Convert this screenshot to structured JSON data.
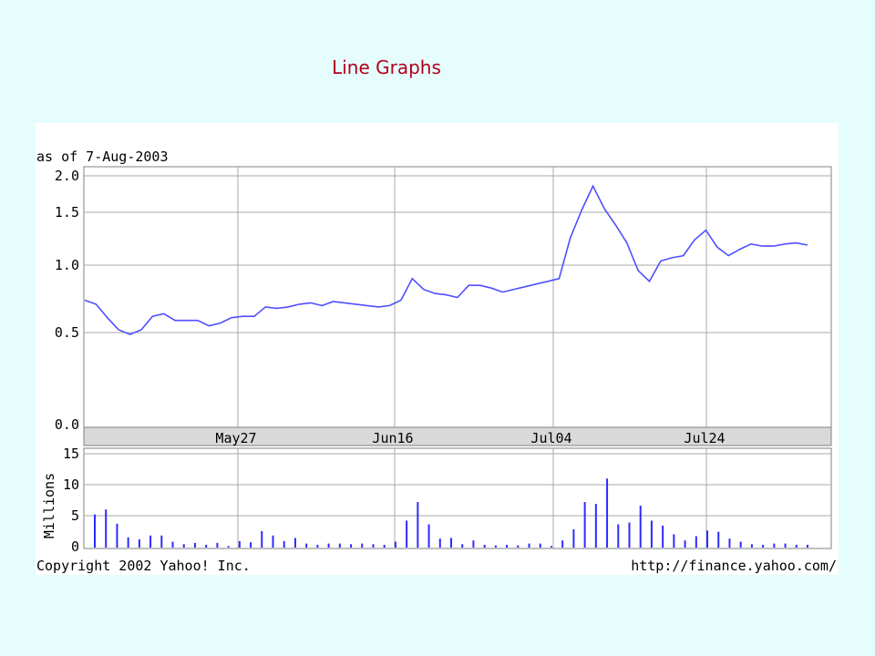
{
  "slide": {
    "title": "Line Graphs"
  },
  "chart_meta": {
    "as_of": "as of 7-Aug-2003",
    "copyright": "Copyright 2002 Yahoo! Inc.",
    "source_url": "http://finance.yahoo.com/",
    "line_color": "#4f4fff",
    "volume_color": "#2b2bff",
    "grid_color": "#a9a9a9",
    "date_band_color": "#d9d9d9"
  },
  "chart_data": [
    {
      "type": "line",
      "title": "",
      "ylim": [
        0,
        2.0
      ],
      "yticks": [
        "2.0",
        "1.5",
        "1.0",
        "0.5",
        "0.0"
      ],
      "ytick_values": [
        2.0,
        1.5,
        1.0,
        0.5,
        0.0
      ],
      "xtick_labels": [
        "May27",
        "Jun16",
        "Jul04",
        "Jul24"
      ],
      "grid": true,
      "series": [
        {
          "values": [
            0.74,
            0.71,
            0.61,
            0.52,
            0.49,
            0.52,
            0.62,
            0.64,
            0.59,
            0.59,
            0.59,
            0.55,
            0.57,
            0.61,
            0.62,
            0.62,
            0.69,
            0.68,
            0.69,
            0.71,
            0.72,
            0.7,
            0.73,
            0.72,
            0.71,
            0.7,
            0.69,
            0.7,
            0.74,
            0.9,
            0.82,
            0.79,
            0.78,
            0.76,
            0.85,
            0.85,
            0.83,
            0.8,
            0.82,
            0.84,
            0.86,
            0.88,
            0.9,
            1.26,
            1.53,
            1.86,
            1.55,
            1.38,
            1.21,
            0.96,
            0.88,
            1.04,
            1.07,
            1.09,
            1.24,
            1.33,
            1.17,
            1.09,
            1.15,
            1.2,
            1.18,
            1.18,
            1.2,
            1.21,
            1.19
          ]
        }
      ]
    },
    {
      "type": "bar",
      "ylabel": "Millions",
      "ylim": [
        0,
        15
      ],
      "yticks": [
        "15",
        "10",
        "5",
        "0"
      ],
      "ytick_values": [
        15,
        10,
        5,
        0
      ],
      "grid": true,
      "series": [
        {
          "values": [
            5.2,
            6.0,
            3.7,
            1.5,
            1.2,
            1.8,
            1.8,
            0.8,
            0.4,
            0.6,
            0.3,
            0.6,
            0.1,
            0.9,
            0.7,
            2.5,
            1.8,
            0.9,
            1.4,
            0.5,
            0.3,
            0.5,
            0.5,
            0.4,
            0.5,
            0.4,
            0.3,
            0.8,
            4.2,
            7.2,
            3.6,
            1.3,
            1.4,
            0.4,
            1.0,
            0.3,
            0.2,
            0.3,
            0.2,
            0.5,
            0.5,
            0.1,
            1.0,
            2.8,
            7.2,
            6.9,
            11.0,
            3.6,
            3.9,
            6.6,
            4.2,
            3.4,
            2.0,
            1.0,
            1.7,
            2.6,
            2.4,
            1.3,
            0.8,
            0.4,
            0.3,
            0.5,
            0.5,
            0.3,
            0.3
          ]
        }
      ]
    }
  ]
}
